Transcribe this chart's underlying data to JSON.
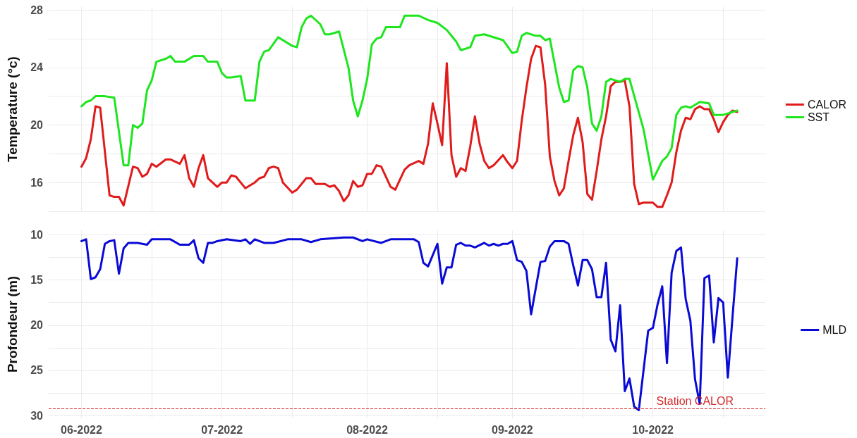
{
  "chart_data": [
    {
      "type": "line",
      "ylabel": "Temperature (°c)",
      "xlim": [
        "2022-05-25",
        "2022-10-25"
      ],
      "ylim": [
        14,
        28.2
      ],
      "xticks": [
        {
          "value": "2022-06-01",
          "label": null
        },
        {
          "value": "2022-06-16",
          "label": null
        },
        {
          "value": "2022-07-01",
          "label": null
        },
        {
          "value": "2022-07-16",
          "label": null
        },
        {
          "value": "2022-08-01",
          "label": null
        },
        {
          "value": "2022-08-16",
          "label": null
        },
        {
          "value": "2022-09-01",
          "label": null
        },
        {
          "value": "2022-09-16",
          "label": null
        },
        {
          "value": "2022-10-01",
          "label": null
        },
        {
          "value": "2022-10-16",
          "label": null
        }
      ],
      "yticks": [
        {
          "value": 14,
          "label": null
        },
        16,
        {
          "value": 18,
          "label": null
        },
        20,
        {
          "value": 22,
          "label": null
        },
        24,
        {
          "value": 26,
          "label": null
        },
        28
      ],
      "tick_labels": "y",
      "grid": true,
      "legend": "right",
      "marker": "none",
      "line_style": "solid",
      "series": [
        {
          "name": "CALOR",
          "color": "#e01b1b",
          "x": [
            "2022-06-01",
            "2022-06-02",
            "2022-06-03",
            "2022-06-04",
            "2022-06-05",
            "2022-06-07",
            "2022-06-08",
            "2022-06-09",
            "2022-06-10",
            "2022-06-12",
            "2022-06-13",
            "2022-06-14",
            "2022-06-15",
            "2022-06-16",
            "2022-06-17",
            "2022-06-19",
            "2022-06-20",
            "2022-06-22",
            "2022-06-23",
            "2022-06-24",
            "2022-06-25",
            "2022-06-26",
            "2022-06-27",
            "2022-06-28",
            "2022-06-30",
            "2022-07-01",
            "2022-07-02",
            "2022-07-03",
            "2022-07-04",
            "2022-07-06",
            "2022-07-07",
            "2022-07-08",
            "2022-07-09",
            "2022-07-10",
            "2022-07-11",
            "2022-07-12",
            "2022-07-13",
            "2022-07-14",
            "2022-07-16",
            "2022-07-17",
            "2022-07-19",
            "2022-07-20",
            "2022-07-21",
            "2022-07-23",
            "2022-07-24",
            "2022-07-25",
            "2022-07-26",
            "2022-07-27",
            "2022-07-28",
            "2022-07-29",
            "2022-07-30",
            "2022-07-31",
            "2022-08-01",
            "2022-08-02",
            "2022-08-03",
            "2022-08-04",
            "2022-08-06",
            "2022-08-07",
            "2022-08-09",
            "2022-08-10",
            "2022-08-12",
            "2022-08-13",
            "2022-08-14",
            "2022-08-15",
            "2022-08-16",
            "2022-08-17",
            "2022-08-18",
            "2022-08-19",
            "2022-08-20",
            "2022-08-21",
            "2022-08-22",
            "2022-08-23",
            "2022-08-24",
            "2022-08-25",
            "2022-08-26",
            "2022-08-27",
            "2022-08-28",
            "2022-08-30",
            "2022-08-31",
            "2022-09-01",
            "2022-09-02",
            "2022-09-03",
            "2022-09-04",
            "2022-09-05",
            "2022-09-06",
            "2022-09-07",
            "2022-09-08",
            "2022-09-09",
            "2022-09-10",
            "2022-09-11",
            "2022-09-12",
            "2022-09-13",
            "2022-09-14",
            "2022-09-15",
            "2022-09-16",
            "2022-09-17",
            "2022-09-18",
            "2022-09-19",
            "2022-09-20",
            "2022-09-21",
            "2022-09-22",
            "2022-09-23",
            "2022-09-24",
            "2022-09-25",
            "2022-09-26",
            "2022-09-27",
            "2022-09-28",
            "2022-09-29",
            "2022-09-30",
            "2022-10-01",
            "2022-10-02",
            "2022-10-03",
            "2022-10-04",
            "2022-10-05",
            "2022-10-06",
            "2022-10-07",
            "2022-10-08",
            "2022-10-09",
            "2022-10-10",
            "2022-10-11",
            "2022-10-12",
            "2022-10-13",
            "2022-10-14",
            "2022-10-15",
            "2022-10-16",
            "2022-10-17",
            "2022-10-18",
            "2022-10-19"
          ],
          "values": [
            17.1,
            17.7,
            19.0,
            21.3,
            21.2,
            15.1,
            15.0,
            15.0,
            14.4,
            17.1,
            17.0,
            16.4,
            16.6,
            17.3,
            17.1,
            17.6,
            17.6,
            17.3,
            17.9,
            16.3,
            15.7,
            17.0,
            17.9,
            16.3,
            15.7,
            16.0,
            16.0,
            16.5,
            16.4,
            15.6,
            15.8,
            16.0,
            16.3,
            16.4,
            17.0,
            17.1,
            17.0,
            16.0,
            15.3,
            15.5,
            16.3,
            16.3,
            15.9,
            15.9,
            15.7,
            15.8,
            15.4,
            14.7,
            15.1,
            16.1,
            15.7,
            15.8,
            16.6,
            16.6,
            17.2,
            17.1,
            15.7,
            15.5,
            16.9,
            17.2,
            17.5,
            17.3,
            18.7,
            21.5,
            20.1,
            18.6,
            24.3,
            17.9,
            16.4,
            17.0,
            16.8,
            18.5,
            20.6,
            18.7,
            17.5,
            17.0,
            17.2,
            17.9,
            17.4,
            17.0,
            17.5,
            20.3,
            22.6,
            24.6,
            25.5,
            25.4,
            22.8,
            17.8,
            16.1,
            15.1,
            15.6,
            17.5,
            19.3,
            20.5,
            18.8,
            15.2,
            14.8,
            16.8,
            19.0,
            20.6,
            22.7,
            23.0,
            23.0,
            23.1,
            21.3,
            15.9,
            14.5,
            14.6,
            14.6,
            14.6,
            14.3,
            14.3,
            15.1,
            16.0,
            18.1,
            19.6,
            20.5,
            20.4,
            21.1,
            21.3,
            21.1,
            21.1,
            20.4,
            19.5,
            20.2,
            20.7,
            21.0,
            20.9
          ]
        },
        {
          "name": "SST",
          "color": "#1ee61e",
          "x": [
            "2022-06-01",
            "2022-06-02",
            "2022-06-03",
            "2022-06-04",
            "2022-06-06",
            "2022-06-08",
            "2022-06-10",
            "2022-06-11",
            "2022-06-12",
            "2022-06-13",
            "2022-06-14",
            "2022-06-15",
            "2022-06-16",
            "2022-06-17",
            "2022-06-19",
            "2022-06-20",
            "2022-06-21",
            "2022-06-23",
            "2022-06-25",
            "2022-06-27",
            "2022-06-28",
            "2022-06-30",
            "2022-07-01",
            "2022-07-02",
            "2022-07-03",
            "2022-07-05",
            "2022-07-06",
            "2022-07-08",
            "2022-07-09",
            "2022-07-10",
            "2022-07-11",
            "2022-07-13",
            "2022-07-14",
            "2022-07-16",
            "2022-07-17",
            "2022-07-18",
            "2022-07-19",
            "2022-07-20",
            "2022-07-22",
            "2022-07-23",
            "2022-07-24",
            "2022-07-26",
            "2022-07-28",
            "2022-07-29",
            "2022-07-30",
            "2022-07-31",
            "2022-08-01",
            "2022-08-02",
            "2022-08-03",
            "2022-08-04",
            "2022-08-05",
            "2022-08-08",
            "2022-08-09",
            "2022-08-12",
            "2022-08-14",
            "2022-08-16",
            "2022-08-18",
            "2022-08-20",
            "2022-08-21",
            "2022-08-23",
            "2022-08-24",
            "2022-08-26",
            "2022-08-30",
            "2022-09-01",
            "2022-09-02",
            "2022-09-03",
            "2022-09-04",
            "2022-09-06",
            "2022-09-07",
            "2022-09-08",
            "2022-09-09",
            "2022-09-11",
            "2022-09-12",
            "2022-09-13",
            "2022-09-14",
            "2022-09-15",
            "2022-09-16",
            "2022-09-17",
            "2022-09-18",
            "2022-09-19",
            "2022-09-20",
            "2022-09-21",
            "2022-09-22",
            "2022-09-24",
            "2022-09-25",
            "2022-09-26",
            "2022-09-29",
            "2022-10-01",
            "2022-10-03",
            "2022-10-04",
            "2022-10-05",
            "2022-10-06",
            "2022-10-07",
            "2022-10-08",
            "2022-10-09",
            "2022-10-11",
            "2022-10-13",
            "2022-10-14",
            "2022-10-16",
            "2022-10-17",
            "2022-10-19"
          ],
          "values": [
            21.3,
            21.6,
            21.7,
            22.0,
            22.0,
            21.9,
            17.2,
            17.2,
            20.0,
            19.8,
            20.1,
            22.4,
            23.1,
            24.4,
            24.6,
            24.8,
            24.4,
            24.4,
            24.8,
            24.8,
            24.4,
            24.4,
            23.6,
            23.3,
            23.3,
            23.4,
            21.7,
            21.7,
            24.4,
            25.1,
            25.2,
            26.1,
            25.9,
            25.5,
            25.4,
            26.8,
            27.4,
            27.6,
            27.0,
            26.3,
            26.3,
            26.5,
            24.0,
            21.7,
            20.6,
            21.7,
            23.2,
            25.6,
            26.0,
            26.1,
            26.8,
            26.8,
            27.6,
            27.6,
            27.3,
            27.1,
            26.6,
            25.8,
            25.2,
            25.4,
            26.2,
            26.3,
            25.9,
            25.0,
            25.1,
            26.2,
            26.4,
            26.2,
            26.2,
            25.9,
            26.0,
            22.6,
            21.6,
            21.7,
            23.8,
            24.1,
            24.0,
            22.6,
            20.1,
            19.6,
            20.6,
            23.0,
            23.2,
            23.0,
            23.2,
            23.2,
            19.7,
            16.2,
            17.5,
            17.8,
            18.4,
            20.7,
            21.2,
            21.3,
            21.2,
            21.6,
            21.5,
            20.7,
            20.7,
            20.8,
            21.0
          ]
        }
      ]
    },
    {
      "type": "line",
      "ylabel": "Profondeur (m)",
      "xlim": [
        "2022-05-25",
        "2022-10-25"
      ],
      "ylim": [
        30.3,
        9.5
      ],
      "xticks": [
        {
          "value": "2022-06-01",
          "label": "06-2022"
        },
        {
          "value": "2022-06-16",
          "label": null
        },
        {
          "value": "2022-07-01",
          "label": "07-2022"
        },
        {
          "value": "2022-07-16",
          "label": null
        },
        {
          "value": "2022-08-01",
          "label": "08-2022"
        },
        {
          "value": "2022-08-16",
          "label": null
        },
        {
          "value": "2022-09-01",
          "label": "09-2022"
        },
        {
          "value": "2022-09-16",
          "label": null
        },
        {
          "value": "2022-10-01",
          "label": "10-2022"
        },
        {
          "value": "2022-10-16",
          "label": null
        }
      ],
      "yticks": [
        10,
        {
          "value": 12.5,
          "label": null
        },
        15,
        {
          "value": 17.5,
          "label": null
        },
        20,
        {
          "value": 22.5,
          "label": null
        },
        25,
        {
          "value": 27.5,
          "label": null
        },
        30
      ],
      "grid": true,
      "legend": "right",
      "marker": "none",
      "line_style": "solid",
      "ref_lines": [
        {
          "axis": "y",
          "value": 29.2,
          "label": "Station CALOR",
          "color": "#d42a2a",
          "line_style": "dashed"
        }
      ],
      "series": [
        {
          "name": "MLD",
          "color": "#0a0ad6",
          "x": [
            "2022-06-01",
            "2022-06-02",
            "2022-06-03",
            "2022-06-04",
            "2022-06-05",
            "2022-06-06",
            "2022-06-07",
            "2022-06-08",
            "2022-06-09",
            "2022-06-10",
            "2022-06-11",
            "2022-06-13",
            "2022-06-15",
            "2022-06-16",
            "2022-06-20",
            "2022-06-22",
            "2022-06-24",
            "2022-06-25",
            "2022-06-26",
            "2022-06-27",
            "2022-06-28",
            "2022-06-29",
            "2022-06-30",
            "2022-07-02",
            "2022-07-05",
            "2022-07-06",
            "2022-07-07",
            "2022-07-08",
            "2022-07-10",
            "2022-07-12",
            "2022-07-15",
            "2022-07-18",
            "2022-07-20",
            "2022-07-22",
            "2022-07-27",
            "2022-07-29",
            "2022-07-31",
            "2022-08-01",
            "2022-08-04",
            "2022-08-06",
            "2022-08-11",
            "2022-08-12",
            "2022-08-13",
            "2022-08-14",
            "2022-08-16",
            "2022-08-17",
            "2022-08-18",
            "2022-08-19",
            "2022-08-20",
            "2022-08-21",
            "2022-08-22",
            "2022-08-23",
            "2022-08-24",
            "2022-08-26",
            "2022-08-27",
            "2022-08-28",
            "2022-08-29",
            "2022-08-30",
            "2022-08-31",
            "2022-09-01",
            "2022-09-02",
            "2022-09-03",
            "2022-09-04",
            "2022-09-05",
            "2022-09-07",
            "2022-09-08",
            "2022-09-09",
            "2022-09-10",
            "2022-09-12",
            "2022-09-13",
            "2022-09-14",
            "2022-09-15",
            "2022-09-16",
            "2022-09-17",
            "2022-09-18",
            "2022-09-19",
            "2022-09-20",
            "2022-09-21",
            "2022-09-22",
            "2022-09-23",
            "2022-09-24",
            "2022-09-25",
            "2022-09-26",
            "2022-09-27",
            "2022-09-28",
            "2022-09-29",
            "2022-09-30",
            "2022-10-01",
            "2022-10-02",
            "2022-10-03",
            "2022-10-04",
            "2022-10-05",
            "2022-10-06",
            "2022-10-07",
            "2022-10-08",
            "2022-10-09",
            "2022-10-10",
            "2022-10-11",
            "2022-10-12",
            "2022-10-13",
            "2022-10-14",
            "2022-10-15",
            "2022-10-16",
            "2022-10-17",
            "2022-10-18",
            "2022-10-19"
          ],
          "values": [
            10.7,
            10.5,
            14.9,
            14.7,
            13.8,
            11.0,
            10.7,
            10.6,
            14.3,
            11.5,
            10.9,
            10.9,
            11.1,
            10.5,
            10.5,
            11.1,
            11.1,
            10.6,
            12.6,
            13.1,
            10.9,
            10.9,
            10.7,
            10.5,
            10.7,
            10.5,
            11.0,
            10.5,
            10.9,
            10.9,
            10.5,
            10.5,
            10.8,
            10.5,
            10.3,
            10.3,
            10.7,
            10.5,
            10.9,
            10.5,
            10.5,
            10.8,
            13.1,
            13.5,
            11.0,
            15.4,
            13.6,
            13.6,
            11.1,
            10.9,
            11.2,
            11.2,
            11.4,
            10.9,
            11.2,
            11.0,
            11.2,
            11.0,
            11.0,
            10.7,
            12.8,
            13.0,
            14.0,
            18.8,
            13.0,
            12.9,
            11.3,
            10.7,
            10.7,
            11.0,
            13.4,
            15.6,
            12.8,
            12.8,
            13.8,
            16.9,
            16.9,
            13.1,
            21.6,
            22.9,
            17.8,
            27.3,
            25.9,
            29.0,
            29.4,
            25.0,
            20.6,
            20.3,
            17.7,
            15.7,
            24.2,
            14.2,
            11.8,
            11.4,
            17.1,
            19.5,
            26.0,
            28.7,
            14.8,
            14.5,
            21.9,
            17.0,
            17.5,
            25.8,
            19.1,
            12.6
          ]
        }
      ]
    }
  ]
}
